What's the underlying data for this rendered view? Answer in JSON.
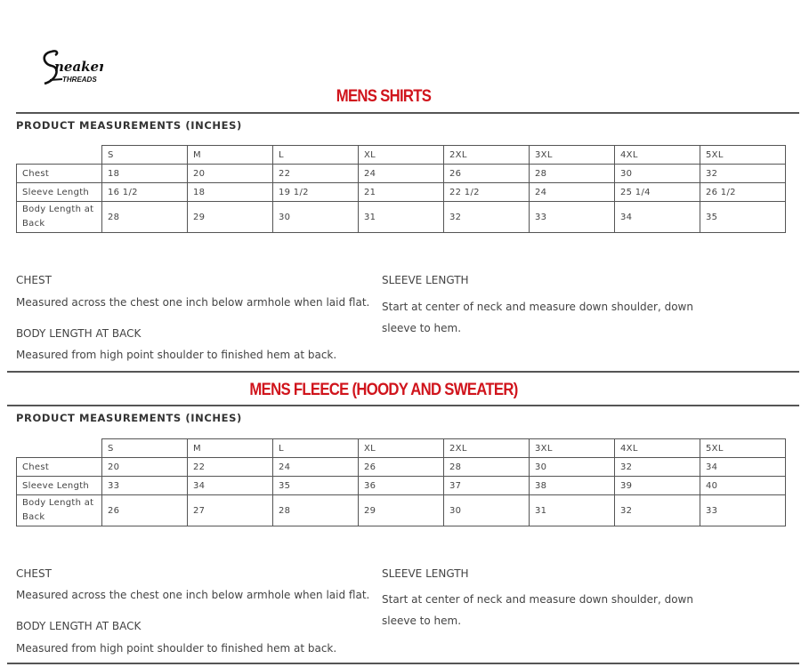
{
  "brand": {
    "logo_text": "Sneaker Threads"
  },
  "sections": [
    {
      "title": "MENS SHIRTS",
      "heading": "PRODUCT MEASUREMENTS (INCHES)",
      "sizes": [
        "S",
        "M",
        "L",
        "XL",
        "2XL",
        "3XL",
        "4XL",
        "5XL"
      ],
      "rows": [
        {
          "label": "Chest",
          "values": [
            "18",
            "20",
            "22",
            "24",
            "26",
            "28",
            "30",
            "32"
          ]
        },
        {
          "label": "Sleeve Length",
          "values": [
            "16 1/2",
            "18",
            "19 1/2",
            "21",
            "22 1/2",
            "24",
            "25 1/4",
            "26 1/2"
          ]
        },
        {
          "label": "Body Length at Back",
          "values": [
            "28",
            "29",
            "30",
            "31",
            "32",
            "33",
            "34",
            "35"
          ]
        }
      ],
      "notes": {
        "chest_title": "CHEST",
        "chest_text": "Measured across the chest one inch below armhole when laid flat.",
        "body_title": "BODY LENGTH AT BACK",
        "body_text": "Measured from high point shoulder to finished hem at back.",
        "sleeve_title": "SLEEVE LENGTH",
        "sleeve_text": "Start at center of neck and measure down shoulder, down sleeve to hem."
      }
    },
    {
      "title": "MENS FLEECE (HOODY AND SWEATER)",
      "heading": "PRODUCT MEASUREMENTS (INCHES)",
      "sizes": [
        "S",
        "M",
        "L",
        "XL",
        "2XL",
        "3XL",
        "4XL",
        "5XL"
      ],
      "rows": [
        {
          "label": "Chest",
          "values": [
            "20",
            "22",
            "24",
            "26",
            "28",
            "30",
            "32",
            "34"
          ]
        },
        {
          "label": "Sleeve Length",
          "values": [
            "33",
            "34",
            "35",
            "36",
            "37",
            "38",
            "39",
            "40"
          ]
        },
        {
          "label": "Body Length at Back",
          "values": [
            "26",
            "27",
            "28",
            "29",
            "30",
            "31",
            "32",
            "33"
          ]
        }
      ],
      "notes": {
        "chest_title": "CHEST",
        "chest_text": "Measured across the chest one inch below armhole when laid flat.",
        "body_title": "BODY LENGTH AT BACK",
        "body_text": "Measured from high point shoulder to finished hem at back.",
        "sleeve_title": "SLEEVE LENGTH",
        "sleeve_text": "Start at center of neck and measure down shoulder, down sleeve to hem."
      }
    }
  ],
  "colors": {
    "title": "#d0141c",
    "rule": "#555555"
  }
}
